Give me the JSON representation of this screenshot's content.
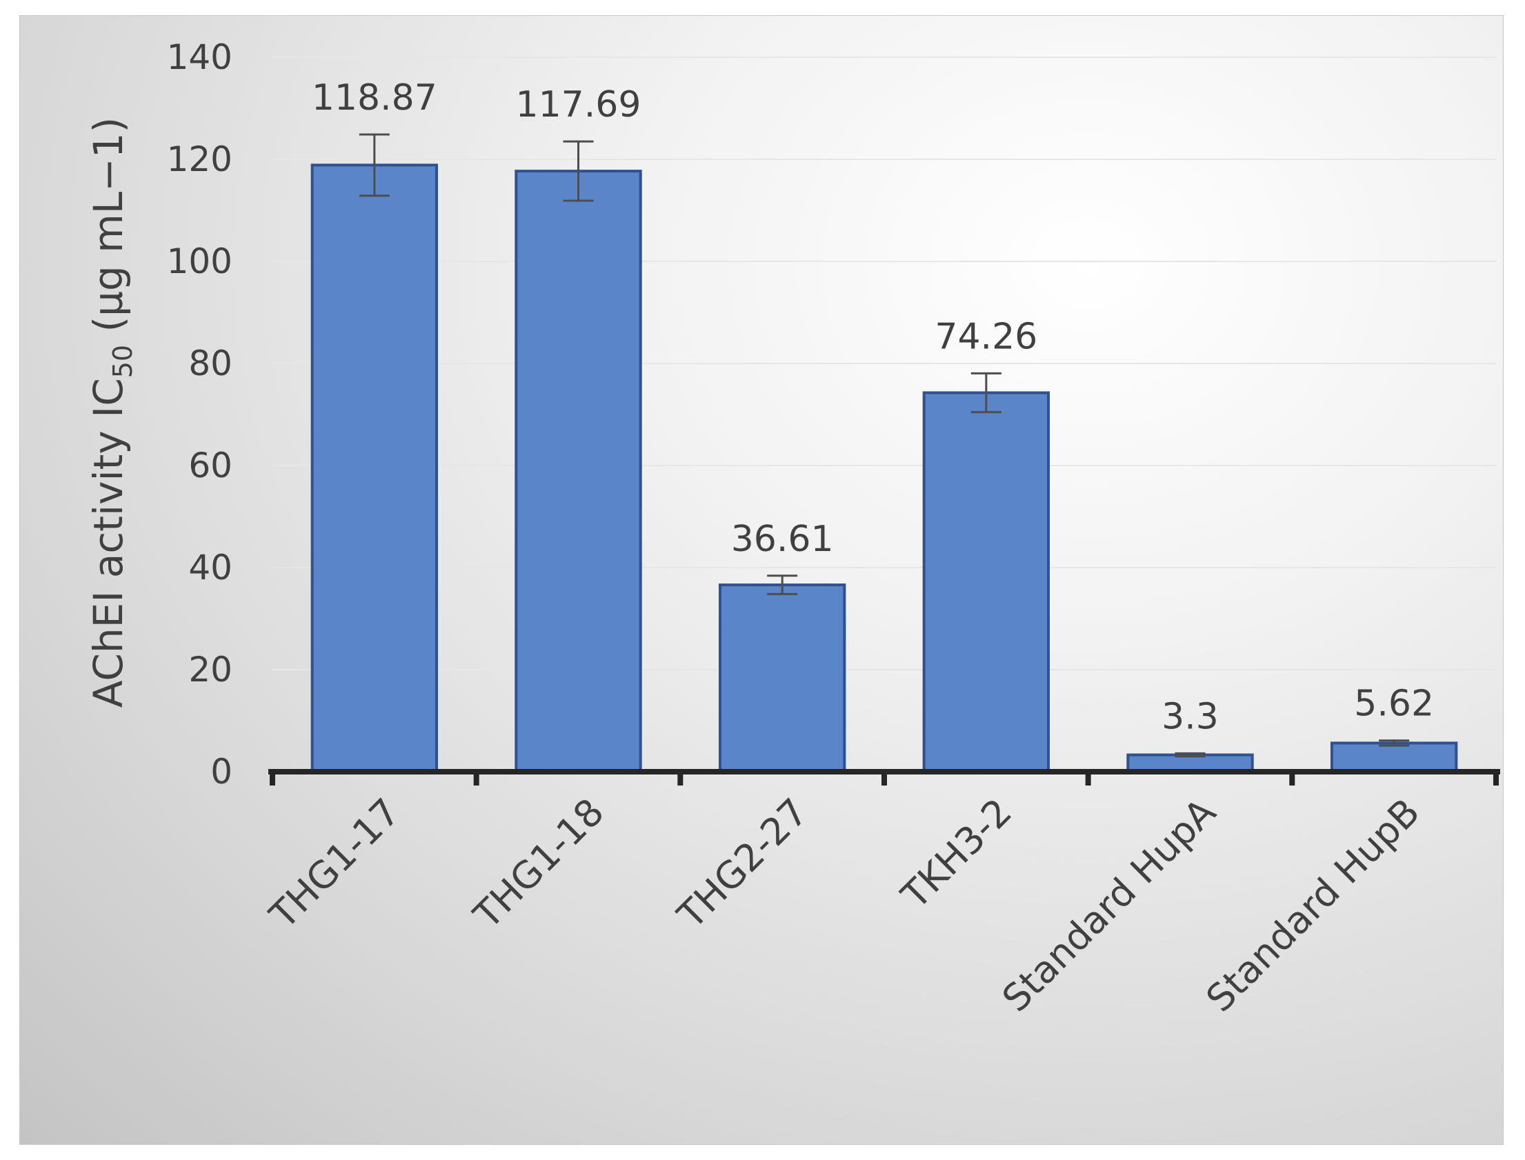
{
  "chart_data": {
    "type": "bar",
    "categories": [
      "THG1-17",
      "THG1-18",
      "THG2-27",
      "TKH3-2",
      "Standard HupA",
      "Standard HupB"
    ],
    "values": [
      118.87,
      117.69,
      36.61,
      74.26,
      3.3,
      5.62
    ],
    "data_labels": [
      "118.87",
      "117.69",
      "36.61",
      "74.26",
      "3.3",
      "5.62"
    ],
    "error_bars": [
      6,
      5.8,
      1.8,
      3.8,
      0.3,
      0.5
    ],
    "ylabel": {
      "main": "AChEI activity IC",
      "sub": "50",
      "unit": " (µg mL−1)"
    },
    "ylim": [
      0,
      140
    ],
    "yticks": [
      0,
      20,
      40,
      60,
      80,
      100,
      120,
      140
    ],
    "grid": true,
    "bar_color": "#5b85c9",
    "bar_edge_color": "#2f528f"
  }
}
